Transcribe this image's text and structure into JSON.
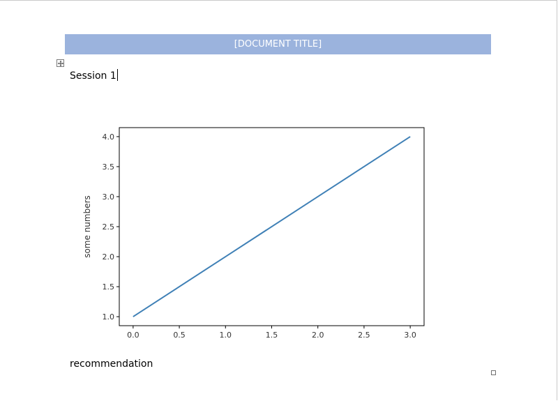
{
  "document": {
    "title": "[DOCUMENT TITLE]",
    "session_text": "Session 1",
    "recommendation_text": "recommendation"
  },
  "colors": {
    "title_banner": "#9bb3dd",
    "line_series": "#3f80b6",
    "axes": "#000000"
  },
  "icons": {
    "table_move_handle": "move-handle-icon",
    "resize_handle": "resize-handle-icon"
  },
  "chart_data": {
    "type": "line",
    "title": "",
    "xlabel": "",
    "ylabel": "some numbers",
    "x": [
      0,
      1,
      2,
      3
    ],
    "series": [
      {
        "values": [
          1,
          2,
          3,
          4
        ]
      }
    ],
    "xlim": [
      -0.15,
      3.15
    ],
    "ylim": [
      0.85,
      4.15
    ],
    "xticks": [
      0.0,
      0.5,
      1.0,
      1.5,
      2.0,
      2.5,
      3.0
    ],
    "xtick_labels": [
      "0.0",
      "0.5",
      "1.0",
      "1.5",
      "2.0",
      "2.5",
      "3.0"
    ],
    "yticks": [
      1.0,
      1.5,
      2.0,
      2.5,
      3.0,
      3.5,
      4.0
    ],
    "ytick_labels": [
      "1.0",
      "1.5",
      "2.0",
      "2.5",
      "3.0",
      "3.5",
      "4.0"
    ],
    "grid": false
  }
}
